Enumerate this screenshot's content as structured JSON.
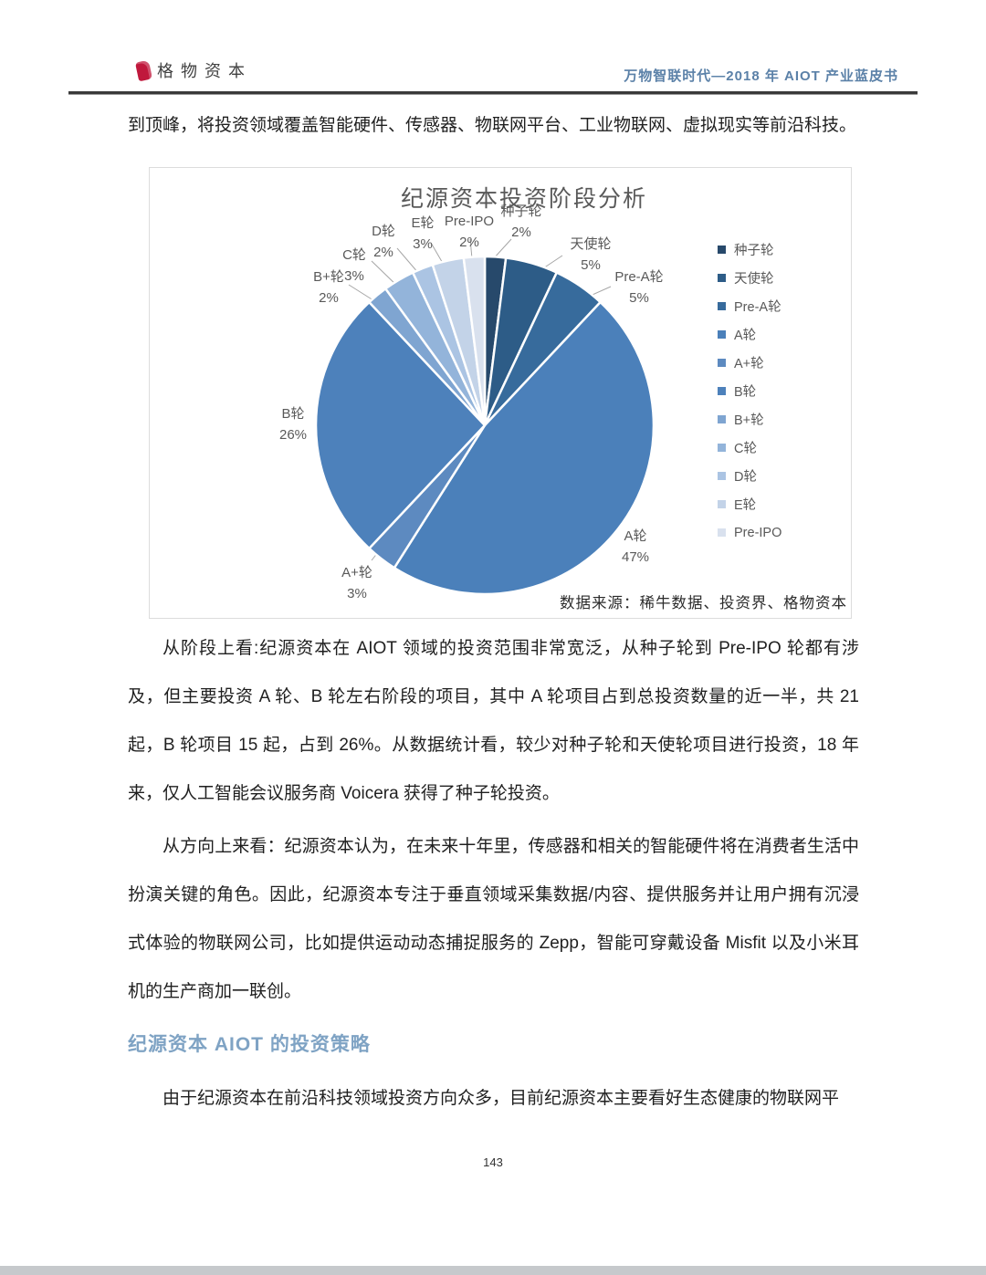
{
  "header": {
    "logo_text": "格物资本",
    "doc_title": "万物智联时代—2018 年 AIOT 产业蓝皮书"
  },
  "body": {
    "intro_line": "到顶峰，将投资领域覆盖智能硬件、传感器、物联网平台、工业物联网、虚拟现实等前沿科技。",
    "para1": "从阶段上看:纪源资本在 AIOT 领域的投资范围非常宽泛，从种子轮到 Pre-IPO 轮都有涉及，但主要投资 A 轮、B 轮左右阶段的项目，其中 A 轮项目占到总投资数量的近一半，共 21 起，B 轮项目 15 起，占到 26%。从数据统计看，较少对种子轮和天使轮项目进行投资，18 年来，仅人工智能会议服务商 Voicera 获得了种子轮投资。",
    "para2": "从方向上来看：纪源资本认为，在未来十年里，传感器和相关的智能硬件将在消费者生活中扮演关键的角色。因此，纪源资本专注于垂直领域采集数据/内容、提供服务并让用户拥有沉浸式体验的物联网公司，比如提供运动动态捕捉服务的 Zepp，智能可穿戴设备 Misfit 以及小米耳机的生产商加一联创。",
    "section_heading": "纪源资本 AIOT 的投资策略",
    "para3": "由于纪源资本在前沿科技领域投资方向众多，目前纪源资本主要看好生态健康的物联网平"
  },
  "chart_data": {
    "type": "pie",
    "title": "纪源资本投资阶段分析",
    "labels": [
      "种子轮",
      "天使轮",
      "Pre-A轮",
      "A轮",
      "A+轮",
      "B轮",
      "B+轮",
      "C轮",
      "D轮",
      "E轮",
      "Pre-IPO"
    ],
    "values": [
      2,
      5,
      5,
      47,
      3,
      26,
      2,
      3,
      2,
      3,
      2
    ],
    "colors": [
      "#27496b",
      "#2d5c87",
      "#376b9c",
      "#4b80ba",
      "#5d8ac0",
      "#4d81bb",
      "#7fa5d1",
      "#93b4da",
      "#abc4e3",
      "#c3d3e8",
      "#d9e1ee"
    ],
    "legend_position": "right",
    "source": "数据来源：稀牛数据、投资界、格物资本"
  },
  "footer": {
    "page_number": "143"
  }
}
